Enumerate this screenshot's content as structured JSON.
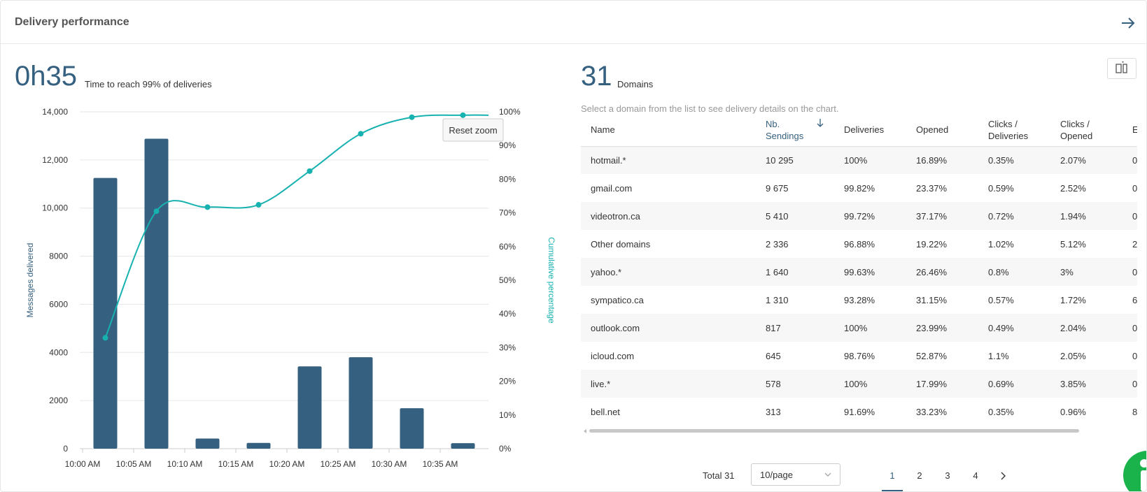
{
  "header": {
    "title": "Delivery performance",
    "arrow_icon": "arrow-right-icon"
  },
  "left_kpi": {
    "value": "0h35",
    "caption": "Time to reach 99% of deliveries"
  },
  "right_kpi": {
    "value": "31",
    "caption": "Domains"
  },
  "hint": "Select a domain from the list to see delivery details on the chart.",
  "column_toggle_icon": "columns-icon",
  "chart_data": {
    "type": "bar",
    "categories": [
      "10:02",
      "10:07",
      "10:12",
      "10:17",
      "10:22",
      "10:27",
      "10:32",
      "10:37"
    ],
    "values": [
      11250,
      12880,
      420,
      240,
      3420,
      3800,
      1680,
      230
    ],
    "series": [
      {
        "name": "Messages delivered",
        "type": "bar",
        "values": [
          11250,
          12880,
          420,
          240,
          3420,
          3800,
          1680,
          230
        ]
      },
      {
        "name": "Cumulative percentage",
        "type": "line",
        "values": [
          32.9,
          70.5,
          71.7,
          72.4,
          82.4,
          93.5,
          98.4,
          99.0
        ]
      }
    ],
    "x_tick_labels": [
      "10:00 AM",
      "10:05 AM",
      "10:10 AM",
      "10:15 AM",
      "10:20 AM",
      "10:25 AM",
      "10:30 AM",
      "10:35 AM"
    ],
    "y_left_ticks": [
      "0",
      "2000",
      "4000",
      "6000",
      "8000",
      "10,000",
      "12,000",
      "14,000"
    ],
    "y_right_ticks": [
      "0%",
      "10%",
      "20%",
      "30%",
      "40%",
      "50%",
      "60%",
      "70%",
      "80%",
      "90%",
      "100%"
    ],
    "ylabel": "Messages delivered",
    "y2label": "Cumulative percentage",
    "ylim": [
      0,
      14000
    ],
    "y2lim": [
      0,
      100
    ],
    "reset_zoom_label": "Reset zoom",
    "grid": true,
    "bar_color": "#35607f",
    "line_color": "#17b2b0"
  },
  "table": {
    "columns": [
      {
        "label": "Name"
      },
      {
        "label": "Nb. Sendings",
        "sort_icon": "sort-arrow-down-icon"
      },
      {
        "label": "Deliveries"
      },
      {
        "label": "Opened"
      },
      {
        "label": "Clicks / Deliveries"
      },
      {
        "label": "Clicks / Opened"
      },
      {
        "label": "E"
      }
    ],
    "rows": [
      [
        "hotmail.*",
        "10 295",
        "100%",
        "16.89%",
        "0.35%",
        "2.07%",
        "0"
      ],
      [
        "gmail.com",
        "9 675",
        "99.82%",
        "23.37%",
        "0.59%",
        "2.52%",
        "0"
      ],
      [
        "videotron.ca",
        "5 410",
        "99.72%",
        "37.17%",
        "0.72%",
        "1.94%",
        "0"
      ],
      [
        "Other domains",
        "2 336",
        "96.88%",
        "19.22%",
        "1.02%",
        "5.12%",
        "2"
      ],
      [
        "yahoo.*",
        "1 640",
        "99.63%",
        "26.46%",
        "0.8%",
        "3%",
        "0"
      ],
      [
        "sympatico.ca",
        "1 310",
        "93.28%",
        "31.15%",
        "0.57%",
        "1.72%",
        "6"
      ],
      [
        "outlook.com",
        "817",
        "100%",
        "23.99%",
        "0.49%",
        "2.04%",
        "0"
      ],
      [
        "icloud.com",
        "645",
        "98.76%",
        "52.87%",
        "1.1%",
        "2.05%",
        "0"
      ],
      [
        "live.*",
        "578",
        "100%",
        "17.99%",
        "0.69%",
        "3.85%",
        "0"
      ],
      [
        "bell.net",
        "313",
        "91.69%",
        "33.23%",
        "0.35%",
        "0.96%",
        "8"
      ]
    ]
  },
  "pagination": {
    "total_label": "Total 31",
    "page_size": "10/page",
    "pages": [
      "1",
      "2",
      "3",
      "4"
    ],
    "current_page": "1",
    "next_icon": "chevron-right-icon"
  },
  "help_icon": "info-icon"
}
